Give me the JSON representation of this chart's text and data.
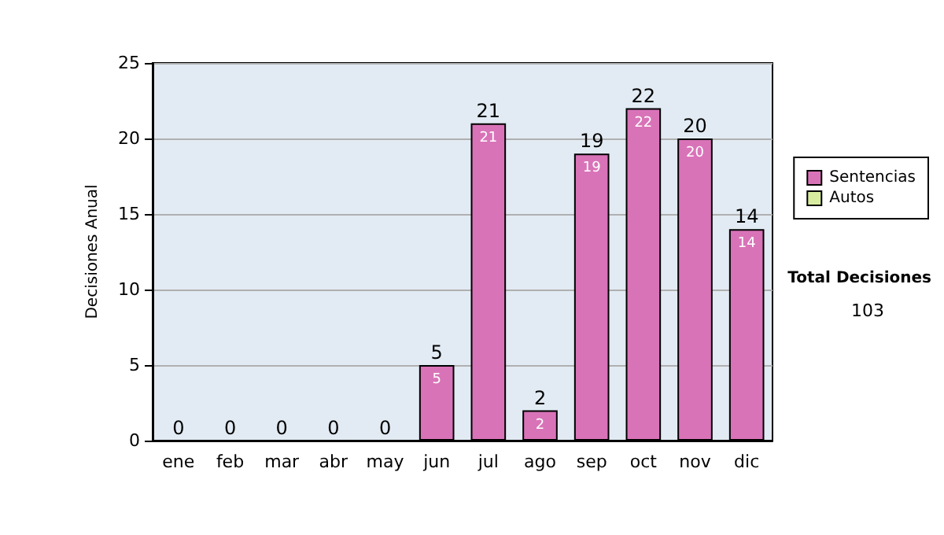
{
  "chart_data": {
    "type": "bar",
    "ylabel": "Decisiones Anual",
    "categories": [
      "ene",
      "feb",
      "mar",
      "abr",
      "may",
      "jun",
      "jul",
      "ago",
      "sep",
      "oct",
      "nov",
      "dic"
    ],
    "series": [
      {
        "name": "Sentencias",
        "color": "#d973b8",
        "values": [
          0,
          0,
          0,
          0,
          0,
          5,
          21,
          2,
          19,
          22,
          20,
          14
        ],
        "value_labels": [
          null,
          null,
          null,
          null,
          null,
          "5",
          "21",
          "2",
          "19",
          "22",
          "20",
          "14"
        ]
      },
      {
        "name": "Autos",
        "color": "#d8eca0",
        "values": [
          0,
          0,
          0,
          0,
          0,
          0,
          0,
          0,
          0,
          0,
          0,
          0
        ]
      }
    ],
    "stacked": true,
    "totals": [
      "0",
      "0",
      "0",
      "0",
      "0",
      "5",
      "21",
      "2",
      "19",
      "22",
      "20",
      "14"
    ],
    "ylim": [
      0,
      25
    ],
    "yticks": [
      0,
      5,
      10,
      15,
      20,
      25
    ],
    "grid": "y",
    "legend": "right",
    "annotations": [
      "Total Decisiones",
      "103"
    ]
  }
}
